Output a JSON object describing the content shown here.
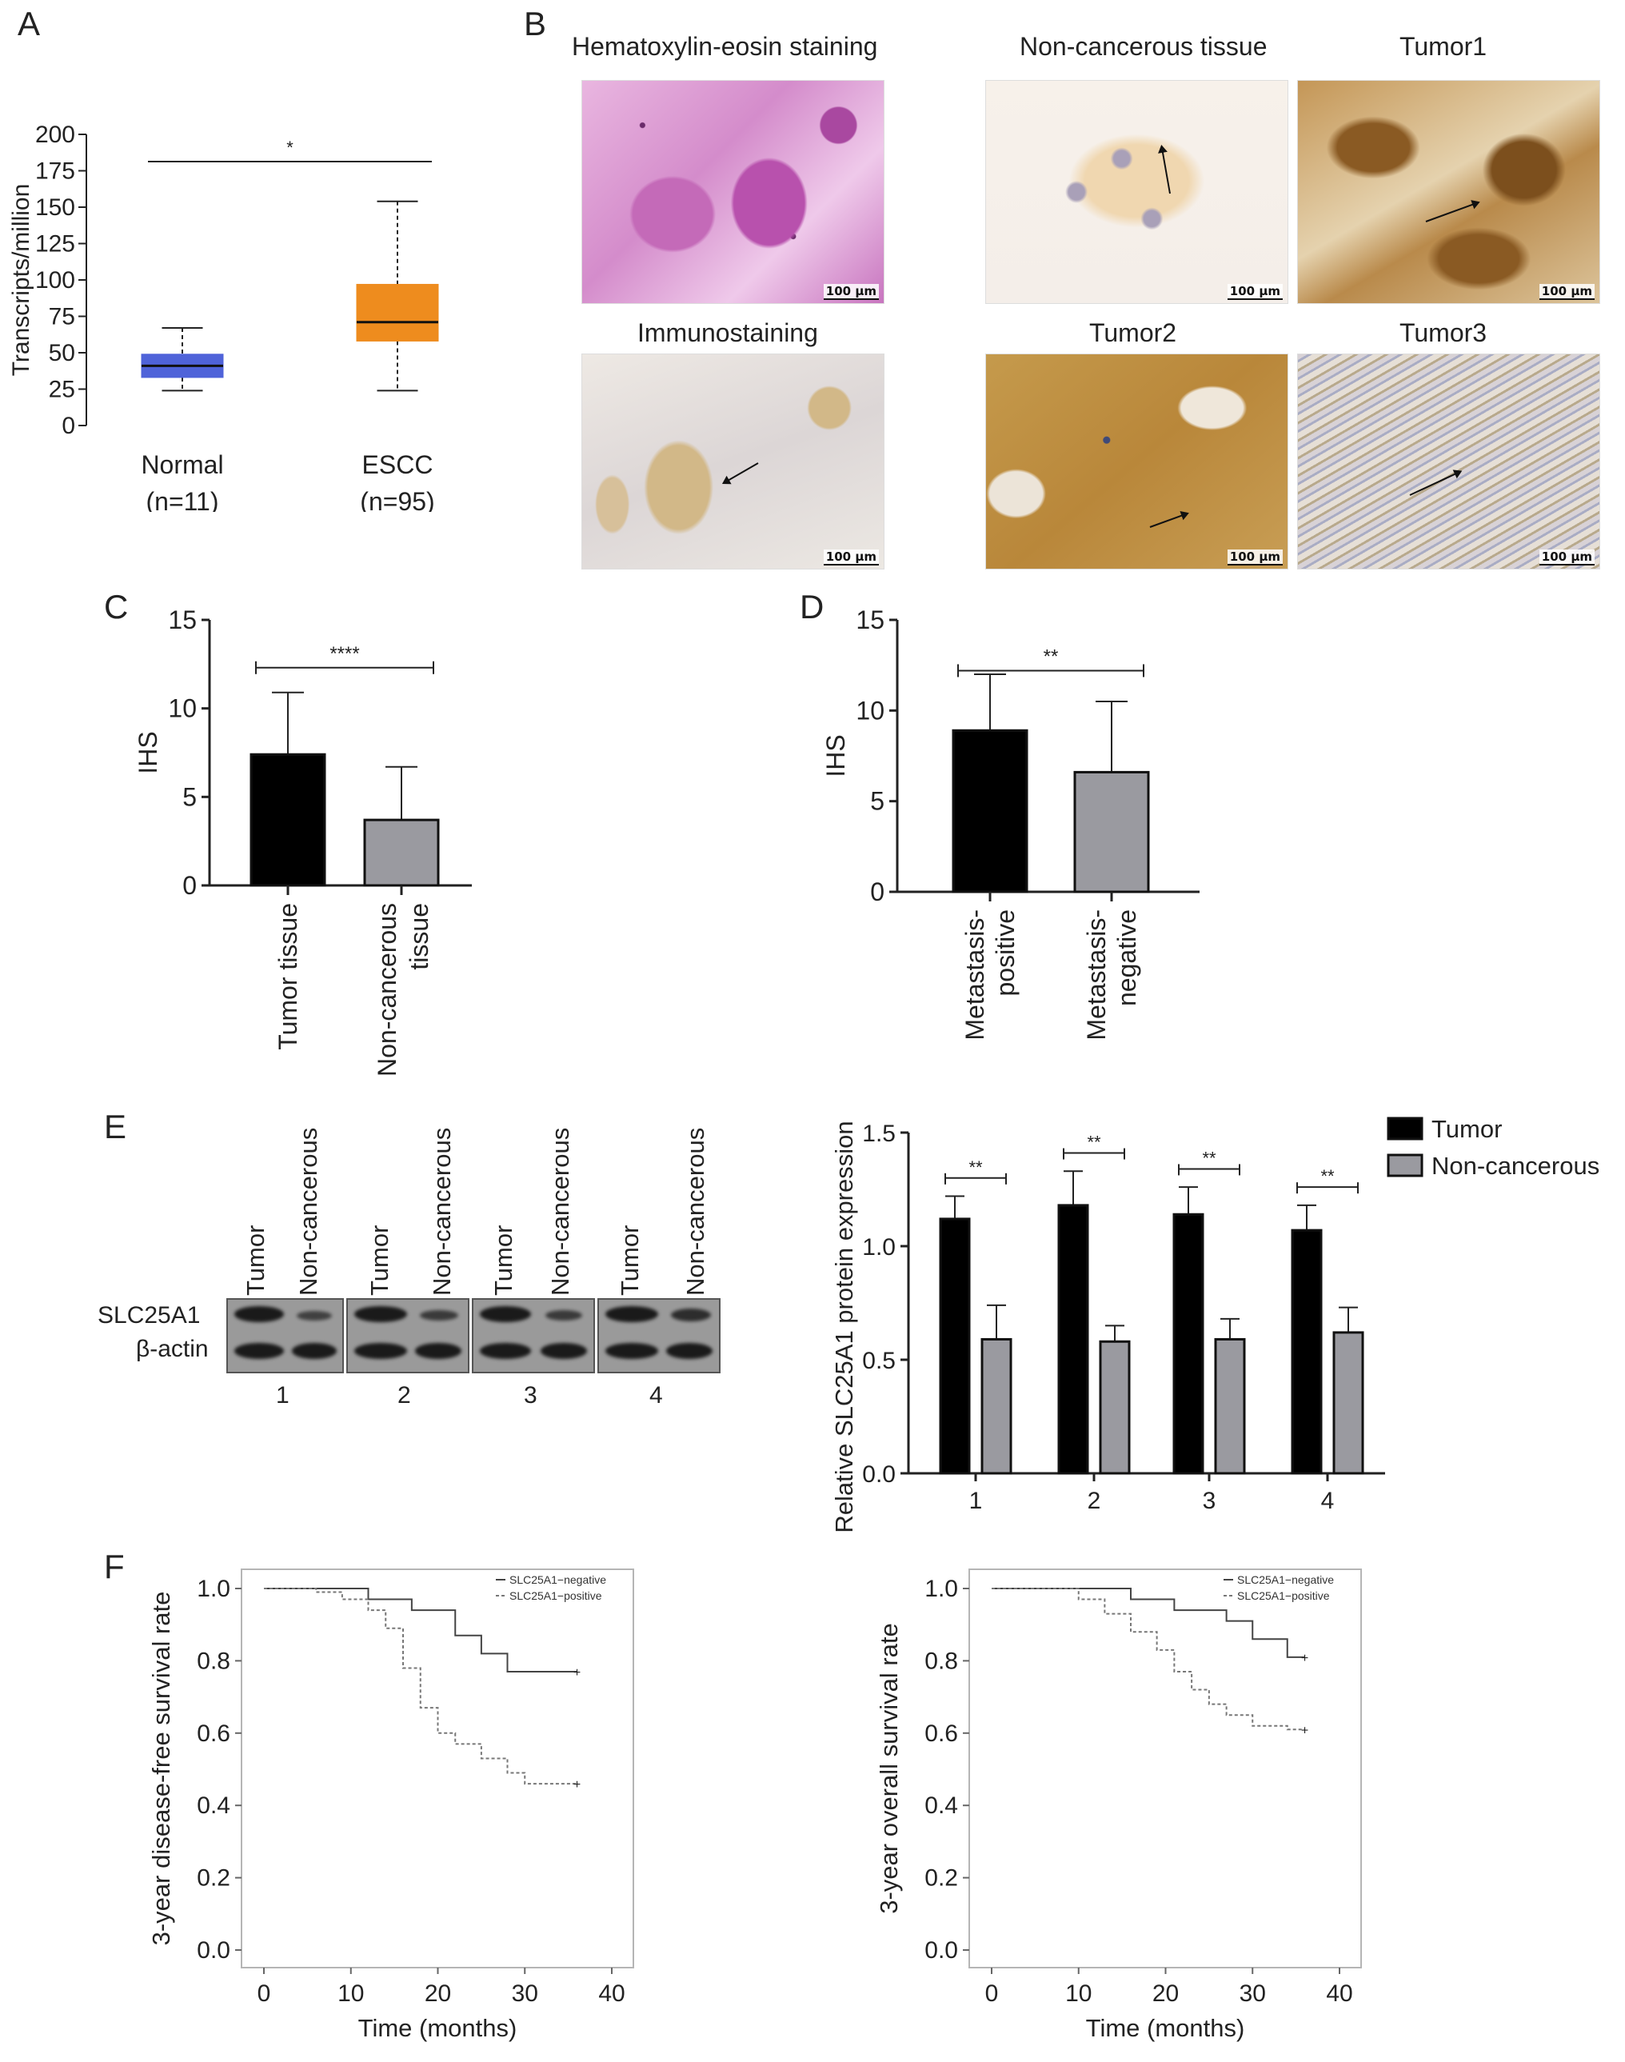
{
  "panels": {
    "A": "A",
    "B": "B",
    "C": "C",
    "D": "D",
    "E": "E",
    "F": "F"
  },
  "colors": {
    "normal": "#4f63d9",
    "escc": "#ee8c1e",
    "tumor": "#000000",
    "noncancer": "#9a9aa0",
    "he": "#b04aa8",
    "ihc_brown": "#c69a4a"
  },
  "panelB": {
    "captions": {
      "he": "Hematoxylin-eosin staining",
      "immuno": "Immunostaining",
      "noncancer": "Non-cancerous tissue",
      "tumor1": "Tumor1",
      "tumor2": "Tumor2",
      "tumor3": "Tumor3"
    },
    "scale": "100 μm"
  },
  "panelE": {
    "lane_labels": [
      "Tumor",
      "Non-cancerous"
    ],
    "row_labels": [
      "SLC25A1",
      "β-actin"
    ],
    "pair_numbers": [
      "1",
      "2",
      "3",
      "4"
    ]
  },
  "chart_data": [
    {
      "id": "A",
      "type": "box",
      "ylabel": "Transcripts/million",
      "ylim": [
        0,
        200
      ],
      "yticks": [
        0,
        25,
        50,
        75,
        100,
        125,
        150,
        175,
        200
      ],
      "categories": [
        "Normal",
        "ESCC"
      ],
      "sublabels": [
        "(n=11)",
        "(n=95)"
      ],
      "boxes": [
        {
          "category": "Normal",
          "min": 24,
          "q1": 33,
          "median": 41,
          "q3": 49,
          "max": 67
        },
        {
          "category": "ESCC",
          "min": 24,
          "q1": 58,
          "median": 71,
          "q3": 97,
          "max": 154
        }
      ],
      "significance": "*"
    },
    {
      "id": "C",
      "type": "bar",
      "ylabel": "IHS",
      "ylim": [
        0,
        15
      ],
      "yticks": [
        0,
        5,
        10,
        15
      ],
      "categories": [
        "Tumor tissue",
        "Non-cancerous tissue"
      ],
      "values": [
        7.4,
        3.7
      ],
      "errors": [
        3.5,
        3.0
      ],
      "significance": "****"
    },
    {
      "id": "D",
      "type": "bar",
      "ylabel": "IHS",
      "ylim": [
        0,
        15
      ],
      "yticks": [
        0,
        5,
        10,
        15
      ],
      "categories": [
        "Metastasis-positive",
        "Metastasis-negative"
      ],
      "values": [
        8.9,
        6.6
      ],
      "errors": [
        3.1,
        3.9
      ],
      "significance": "**"
    },
    {
      "id": "E",
      "type": "bar",
      "ylabel": "Relative SLC25A1 protein expression",
      "ylim": [
        0,
        1.5
      ],
      "yticks": [
        "0.0",
        "0.5",
        "1.0",
        "1.5"
      ],
      "categories": [
        "1",
        "2",
        "3",
        "4"
      ],
      "series": [
        {
          "name": "Tumor",
          "values": [
            1.12,
            1.18,
            1.14,
            1.07
          ],
          "errors": [
            0.1,
            0.15,
            0.12,
            0.11
          ]
        },
        {
          "name": "Non-cancerous",
          "values": [
            0.59,
            0.58,
            0.59,
            0.62
          ],
          "errors": [
            0.15,
            0.07,
            0.09,
            0.11
          ]
        }
      ],
      "significance": [
        "**",
        "**",
        "**",
        "**"
      ],
      "legend": "top-right"
    },
    {
      "id": "F1",
      "type": "line",
      "xlabel": "Time (months)",
      "ylabel": "3-year disease-free survival rate",
      "xlim": [
        0,
        40
      ],
      "ylim": [
        0,
        1
      ],
      "xticks": [
        0,
        10,
        20,
        30,
        40
      ],
      "yticks": [
        "0.0",
        "0.2",
        "0.4",
        "0.6",
        "0.8",
        "1.0"
      ],
      "series": [
        {
          "name": "SLC25A1−negative",
          "x": [
            0,
            12,
            12,
            17,
            17,
            22,
            22,
            25,
            25,
            28,
            28,
            36
          ],
          "y": [
            1.0,
            1.0,
            0.97,
            0.97,
            0.94,
            0.94,
            0.87,
            0.87,
            0.82,
            0.82,
            0.77,
            0.77
          ]
        },
        {
          "name": "SLC25A1−positive",
          "x": [
            0,
            6,
            6,
            9,
            9,
            12,
            12,
            14,
            14,
            16,
            16,
            18,
            18,
            20,
            20,
            22,
            22,
            25,
            25,
            28,
            28,
            30,
            30,
            36
          ],
          "y": [
            1.0,
            1.0,
            0.99,
            0.99,
            0.97,
            0.97,
            0.94,
            0.94,
            0.89,
            0.89,
            0.78,
            0.78,
            0.67,
            0.67,
            0.6,
            0.6,
            0.57,
            0.57,
            0.53,
            0.53,
            0.49,
            0.49,
            0.46,
            0.46
          ]
        }
      ],
      "legend": "top-right"
    },
    {
      "id": "F2",
      "type": "line",
      "xlabel": "Time (months)",
      "ylabel": "3-year overall survival rate",
      "xlim": [
        0,
        40
      ],
      "ylim": [
        0,
        1
      ],
      "xticks": [
        0,
        10,
        20,
        30,
        40
      ],
      "yticks": [
        "0.0",
        "0.2",
        "0.4",
        "0.6",
        "0.8",
        "1.0"
      ],
      "series": [
        {
          "name": "SLC25A1−negative",
          "x": [
            0,
            16,
            16,
            21,
            21,
            27,
            27,
            30,
            30,
            34,
            34,
            36
          ],
          "y": [
            1.0,
            1.0,
            0.97,
            0.97,
            0.94,
            0.94,
            0.91,
            0.91,
            0.86,
            0.86,
            0.81,
            0.81
          ]
        },
        {
          "name": "SLC25A1−positive",
          "x": [
            0,
            10,
            10,
            13,
            13,
            16,
            16,
            19,
            19,
            21,
            21,
            23,
            23,
            25,
            25,
            27,
            27,
            30,
            30,
            34,
            34,
            36
          ],
          "y": [
            1.0,
            1.0,
            0.97,
            0.97,
            0.93,
            0.93,
            0.88,
            0.88,
            0.83,
            0.83,
            0.77,
            0.77,
            0.72,
            0.72,
            0.68,
            0.68,
            0.65,
            0.65,
            0.62,
            0.62,
            0.61,
            0.61
          ]
        }
      ],
      "legend": "top-right"
    }
  ]
}
